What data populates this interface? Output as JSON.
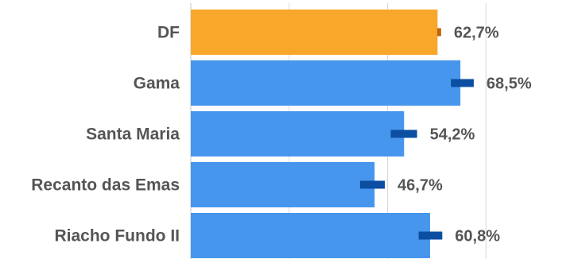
{
  "chart_data": {
    "type": "bar",
    "orientation": "horizontal",
    "categories": [
      "DF",
      "Gama",
      "Santa Maria",
      "Recanto das Emas",
      "Riacho Fundo II"
    ],
    "values": [
      62.7,
      68.5,
      54.2,
      46.7,
      60.8
    ],
    "value_labels": [
      "62,7%",
      "68,5%",
      "54,2%",
      "46,7%",
      "60,8%"
    ],
    "error_low": [
      62.6,
      66.1,
      50.8,
      43.0,
      57.9
    ],
    "error_high": [
      62.9,
      71.9,
      57.5,
      49.3,
      63.9
    ],
    "highlight_index": 0,
    "xlim": [
      0,
      100
    ],
    "grid": true,
    "colors": {
      "bar": "#4796ED",
      "highlight_bar": "#F9A72B",
      "error": "#0B4EA2",
      "highlight_error": "#C0620B",
      "grid": "#D9D9D9",
      "text": "#555555"
    }
  }
}
